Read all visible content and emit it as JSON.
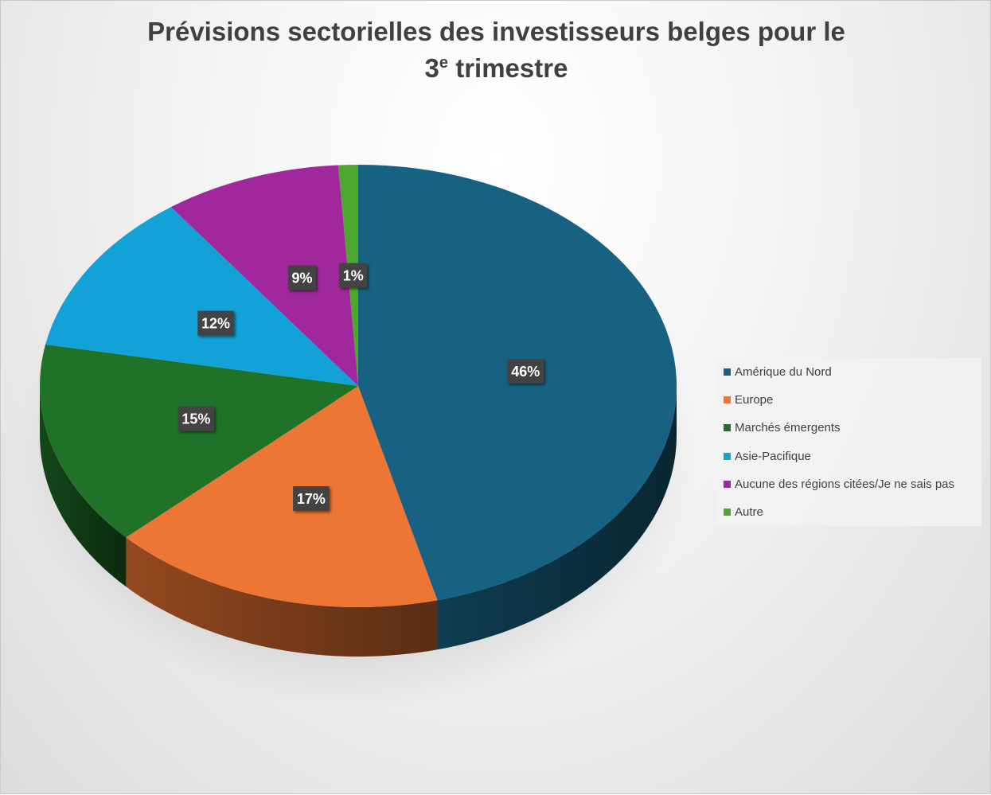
{
  "chart_data": {
    "type": "pie",
    "title_main": "Prévisions sectorielles des investisseurs belges pour le",
    "title_line2_pre": "3",
    "title_line2_sup": "e",
    "title_line2_post": " trimestre",
    "categories": [
      "Amérique du Nord",
      "Europe",
      "Marchés émergents",
      "Asie-Pacifique",
      "Aucune des régions citées/Je ne sais pas",
      "Autre"
    ],
    "values": [
      46,
      17,
      15,
      12,
      9,
      1
    ],
    "data_labels": [
      "46%",
      "17%",
      "15%",
      "12%",
      "9%",
      "1%"
    ],
    "colors": [
      "#176283",
      "#EE7634",
      "#1F7228",
      "#12A2D8",
      "#A0279C",
      "#4EA72E"
    ],
    "style": "3d",
    "legend_position": "right"
  }
}
